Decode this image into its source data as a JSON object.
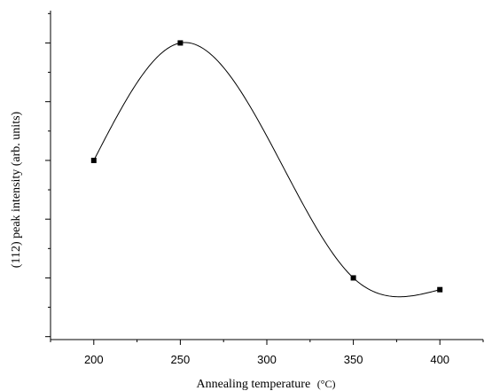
{
  "chart_data": {
    "type": "line",
    "title": "",
    "xlabel": "Annealing temperature",
    "xunit": "(°C)",
    "ylabel": "(112) peak intensity (arb. units)",
    "x": [
      200,
      250,
      350,
      400
    ],
    "y": [
      6,
      10,
      2,
      1.6
    ],
    "xlim": [
      175,
      425
    ],
    "ylim": [
      -0.1,
      11.1
    ],
    "xticks": [
      200,
      250,
      300,
      350,
      400
    ],
    "xtick_labels": [
      "200",
      "250",
      "300",
      "350",
      "400"
    ],
    "yticks": [
      0,
      2,
      4,
      6,
      8,
      10
    ],
    "ytick_labels": [],
    "smooth": true,
    "markers": "square",
    "grid": false,
    "legend": "none"
  }
}
